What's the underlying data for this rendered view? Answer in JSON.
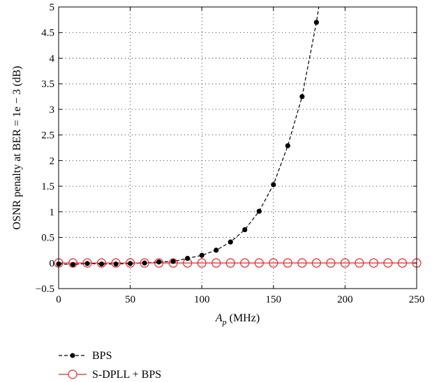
{
  "chart_data": {
    "type": "line",
    "title": "",
    "xlabel_main": "A",
    "xlabel_sub": "p",
    "xlabel_unit": " (MHz)",
    "ylabel": "OSNR penalty at BER = 1e − 3 (dB)",
    "xlim": [
      0,
      250
    ],
    "ylim": [
      -0.5,
      5
    ],
    "grid": true,
    "legend_placement": "bottom-left, below axes",
    "x_ticks": [
      0,
      50,
      100,
      150,
      200,
      250
    ],
    "x_tick_labels": [
      "0",
      "50",
      "100",
      "150",
      "200",
      "250"
    ],
    "y_ticks": [
      -0.5,
      0,
      0.5,
      1,
      1.5,
      2,
      2.5,
      3,
      3.5,
      4,
      4.5,
      5
    ],
    "y_tick_labels": [
      "−0.5",
      "0",
      "0.5",
      "1",
      "1.5",
      "2",
      "2.5",
      "3",
      "3.5",
      "4",
      "4.5",
      "5"
    ],
    "series": [
      {
        "name": "BPS",
        "color": "#000000",
        "marker": "filled-circle",
        "line": "dashed",
        "x": [
          0,
          10,
          20,
          30,
          40,
          50,
          60,
          70,
          80,
          90,
          100,
          110,
          120,
          130,
          140,
          150,
          160,
          170,
          180
        ],
        "values": [
          -0.02,
          -0.03,
          -0.01,
          -0.02,
          -0.02,
          -0.01,
          0.0,
          0.02,
          0.03,
          0.09,
          0.15,
          0.25,
          0.41,
          0.65,
          1.01,
          1.53,
          2.29,
          3.25,
          4.7
        ]
      },
      {
        "name": "S-DPLL + BPS",
        "color": "#e8262a",
        "marker": "open-circle",
        "line": "solid",
        "x": [
          0,
          10,
          20,
          30,
          40,
          50,
          60,
          70,
          80,
          90,
          100,
          110,
          120,
          130,
          140,
          150,
          160,
          170,
          180,
          190,
          200,
          210,
          220,
          230,
          240,
          250
        ],
        "values": [
          0,
          0,
          0,
          0,
          0,
          0,
          0,
          0,
          0,
          0,
          0,
          0,
          0,
          0,
          0,
          0,
          0,
          0,
          0,
          0,
          0,
          0,
          0,
          0,
          0,
          0
        ]
      }
    ]
  }
}
